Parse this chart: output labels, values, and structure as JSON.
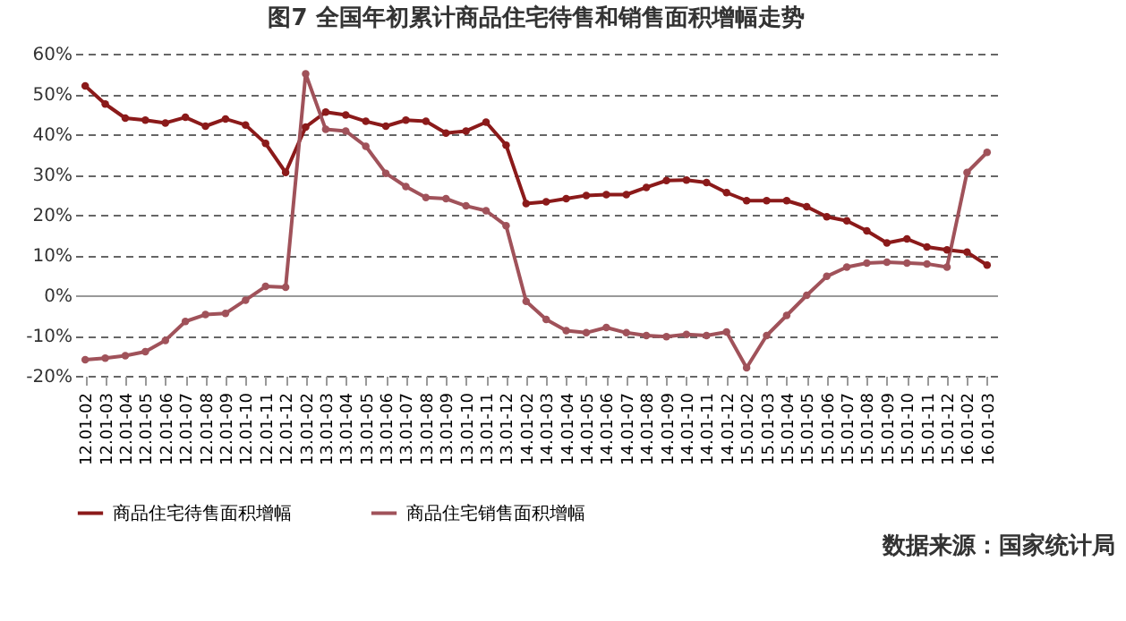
{
  "chart_data": {
    "type": "line",
    "title": "图7 全国年初累计商品住宅待售和销售面积增幅走势",
    "categories": [
      "12.01-02",
      "12.01-03",
      "12.01-04",
      "12.01-05",
      "12.01-06",
      "12.01-07",
      "12.01-08",
      "12.01-09",
      "12.01-10",
      "12.01-11",
      "12.01-12",
      "13.01-02",
      "13.01-03",
      "13.01-04",
      "13.01-05",
      "13.01-06",
      "13.01-07",
      "13.01-08",
      "13.01-09",
      "13.01-10",
      "13.01-11",
      "13.01-12",
      "14.01-02",
      "14.01-03",
      "14.01-04",
      "14.01-05",
      "14.01-06",
      "14.01-07",
      "14.01-08",
      "14.01-09",
      "14.01-10",
      "14.01-11",
      "14.01-12",
      "15.01-02",
      "15.01-03",
      "15.01-04",
      "15.01-05",
      "15.01-06",
      "15.01-07",
      "15.01-08",
      "15.01-09",
      "15.01-10",
      "15.01-11",
      "15.01-12",
      "16.01-02",
      "16.01-03"
    ],
    "series": [
      {
        "name": "商品住宅待售面积增幅",
        "color": "#8b1a1a",
        "values": [
          52,
          47.5,
          44,
          43.5,
          42.8,
          44.2,
          42,
          43.8,
          42.3,
          37.7,
          30.5,
          41.8,
          45.5,
          44.8,
          43.2,
          42,
          43.5,
          43.2,
          40.3,
          40.8,
          43,
          37.3,
          22.8,
          23.2,
          24,
          24.8,
          25,
          25,
          26.8,
          28.5,
          28.6,
          28,
          25.5,
          23.5,
          23.5,
          23.5,
          22,
          19.5,
          18.5,
          16,
          13,
          14,
          12,
          11.3,
          10.7,
          7.5
        ]
      },
      {
        "name": "商品住宅销售面积增幅",
        "color": "#a0525a",
        "values": [
          -16,
          -15.6,
          -15,
          -14,
          -11.2,
          -6.5,
          -4.8,
          -4.5,
          -1.2,
          2.2,
          2,
          55,
          41.2,
          40.8,
          37,
          30.3,
          27,
          24.3,
          24,
          22.2,
          21,
          17.3,
          -1.5,
          -6,
          -8.8,
          -9.3,
          -8,
          -9.3,
          -10,
          -10.3,
          -9.7,
          -10,
          -9.1,
          -18,
          -10,
          -5,
          0,
          4.7,
          7,
          8,
          8.2,
          8,
          7.8,
          7,
          30.5,
          35.5
        ]
      }
    ],
    "ylim": [
      -20,
      60
    ],
    "yticks": [
      {
        "value": -20,
        "label": "-20%"
      },
      {
        "value": -10,
        "label": "-10%"
      },
      {
        "value": 0,
        "label": "0%"
      },
      {
        "value": 10,
        "label": "10%"
      },
      {
        "value": 20,
        "label": "20%"
      },
      {
        "value": 30,
        "label": "30%"
      },
      {
        "value": 40,
        "label": "40%"
      },
      {
        "value": 50,
        "label": "50%"
      },
      {
        "value": 60,
        "label": "60%"
      }
    ],
    "grid": "y",
    "legend": "bottom",
    "marker": "circle",
    "line_style": "solid",
    "annotations": [
      "数据来源：国家统计局"
    ]
  }
}
